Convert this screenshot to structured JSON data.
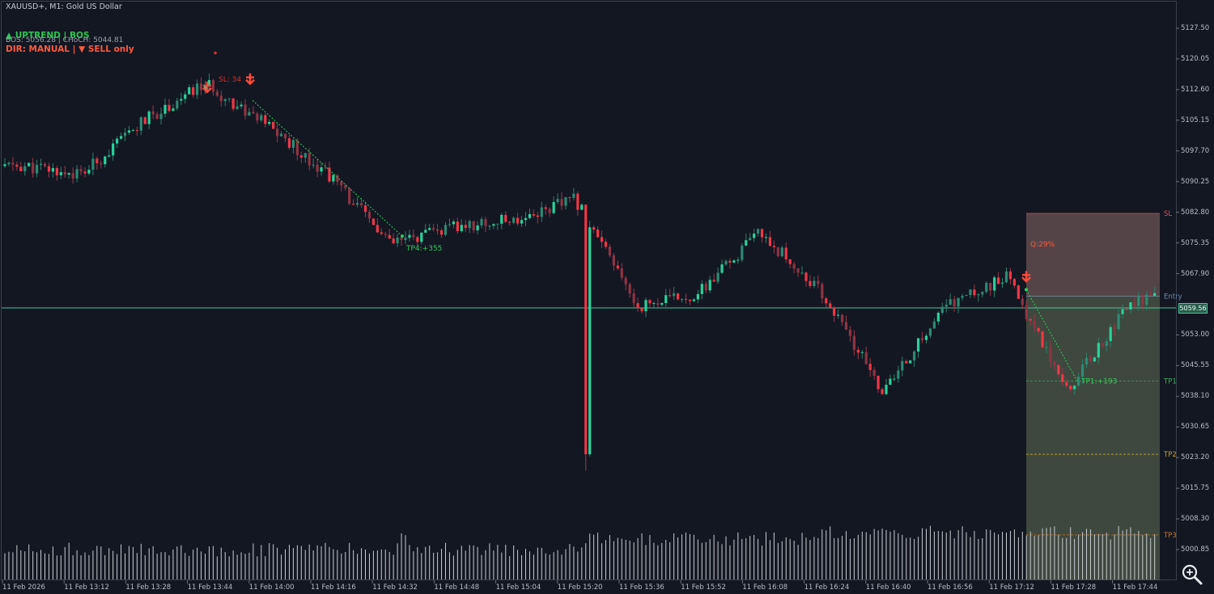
{
  "header": {
    "symbol_line": "XAUUSD+, M1:  Gold US Dollar",
    "trend_line": "▲ UPTREND | BOS",
    "levels_line": "BOS: 5056.28  |  CHoCH: 5044.81",
    "direction_line": "DIR: MANUAL | ▼ SELL only"
  },
  "price_axis": [
    {
      "label": "5127.50",
      "value": 5127.5
    },
    {
      "label": "5120.05",
      "value": 5120.05
    },
    {
      "label": "5112.60",
      "value": 5112.6
    },
    {
      "label": "5105.15",
      "value": 5105.15
    },
    {
      "label": "5097.70",
      "value": 5097.7
    },
    {
      "label": "5090.25",
      "value": 5090.25
    },
    {
      "label": "5082.80",
      "value": 5082.8
    },
    {
      "label": "5075.35",
      "value": 5075.35
    },
    {
      "label": "5067.90",
      "value": 5067.9
    },
    {
      "label": "5053.00",
      "value": 5053.0
    },
    {
      "label": "5045.55",
      "value": 5045.55
    },
    {
      "label": "5038.10",
      "value": 5038.1
    },
    {
      "label": "5030.65",
      "value": 5030.65
    },
    {
      "label": "5023.20",
      "value": 5023.2
    },
    {
      "label": "5015.75",
      "value": 5015.75
    },
    {
      "label": "5008.30",
      "value": 5008.3
    },
    {
      "label": "5000.85",
      "value": 5000.85
    }
  ],
  "current_price": {
    "label": "5059.56",
    "value": 5059.56
  },
  "time_axis": [
    "11 Feb 2026",
    "11 Feb 13:12",
    "11 Feb 13:28",
    "11 Feb 13:44",
    "11 Feb 14:00",
    "11 Feb 14:16",
    "11 Feb 14:32",
    "11 Feb 14:48",
    "11 Feb 15:04",
    "11 Feb 15:20",
    "11 Feb 15:36",
    "11 Feb 15:52",
    "11 Feb 16:08",
    "11 Feb 16:24",
    "11 Feb 16:40",
    "11 Feb 16:56",
    "11 Feb 17:12",
    "11 Feb 17:28",
    "11 Feb 17:44"
  ],
  "annotations": {
    "sl_marker": "SL: 34",
    "tp4_marker": "TP4:+355",
    "tp1_marker": "TP1:+193",
    "quality_label": "Q:29%"
  },
  "trade_zone": {
    "sl_label": "SL",
    "entry_label": "Entry",
    "tp1_label": "TP1",
    "tp2_label": "TP2",
    "tp3_label": "TP3",
    "sl_price": 5082.5,
    "entry_price": 5062.4,
    "tp1_price": 5041.8,
    "tp2_price": 5024.0,
    "tp3_price": 5004.4
  },
  "chart_data": {
    "type": "candlestick",
    "symbol": "XAUUSD+",
    "timeframe": "M1",
    "ylim": [
      4997,
      5131
    ],
    "bull_color": "#26d39a",
    "bear_color": "#f23645",
    "price_path": [
      {
        "x": "11 Feb 2026",
        "y": 5094
      },
      {
        "x": "11 Feb 13:12",
        "y": 5092
      },
      {
        "x": "11 Feb 13:28",
        "y": 5105
      },
      {
        "x": "11 Feb 13:44",
        "y": 5114
      },
      {
        "x": "11 Feb 14:00",
        "y": 5104
      },
      {
        "x": "11 Feb 14:16",
        "y": 5092
      },
      {
        "x": "11 Feb 14:32",
        "y": 5075
      },
      {
        "x": "11 Feb 14:48",
        "y": 5079
      },
      {
        "x": "11 Feb 15:04",
        "y": 5081
      },
      {
        "x": "11 Feb 15:20",
        "y": 5086
      },
      {
        "x": "11 Feb 15:36",
        "y": 5060
      },
      {
        "x": "11 Feb 15:52",
        "y": 5063
      },
      {
        "x": "11 Feb 16:08",
        "y": 5078
      },
      {
        "x": "11 Feb 16:24",
        "y": 5063
      },
      {
        "x": "11 Feb 16:40",
        "y": 5039
      },
      {
        "x": "11 Feb 16:56",
        "y": 5060
      },
      {
        "x": "11 Feb 17:12",
        "y": 5067
      },
      {
        "x": "11 Feb 17:28",
        "y": 5040
      },
      {
        "x": "11 Feb 17:44",
        "y": 5061
      }
    ],
    "events": [
      {
        "x": "11 Feb 15:20",
        "type": "spike-low",
        "y": 5020
      }
    ]
  },
  "colors": {
    "background": "#131722",
    "frame": "#3a3f4b",
    "axis_text": "#b8bcc6",
    "price_line": "#4ac59a",
    "sl_zone": "#8a6a68",
    "tp_zone": "#4d5a48",
    "uptrend": "#26c84f",
    "sell": "#ff5a3c"
  },
  "controls": {
    "zoom_icon": "magnifier-zoom-icon"
  }
}
